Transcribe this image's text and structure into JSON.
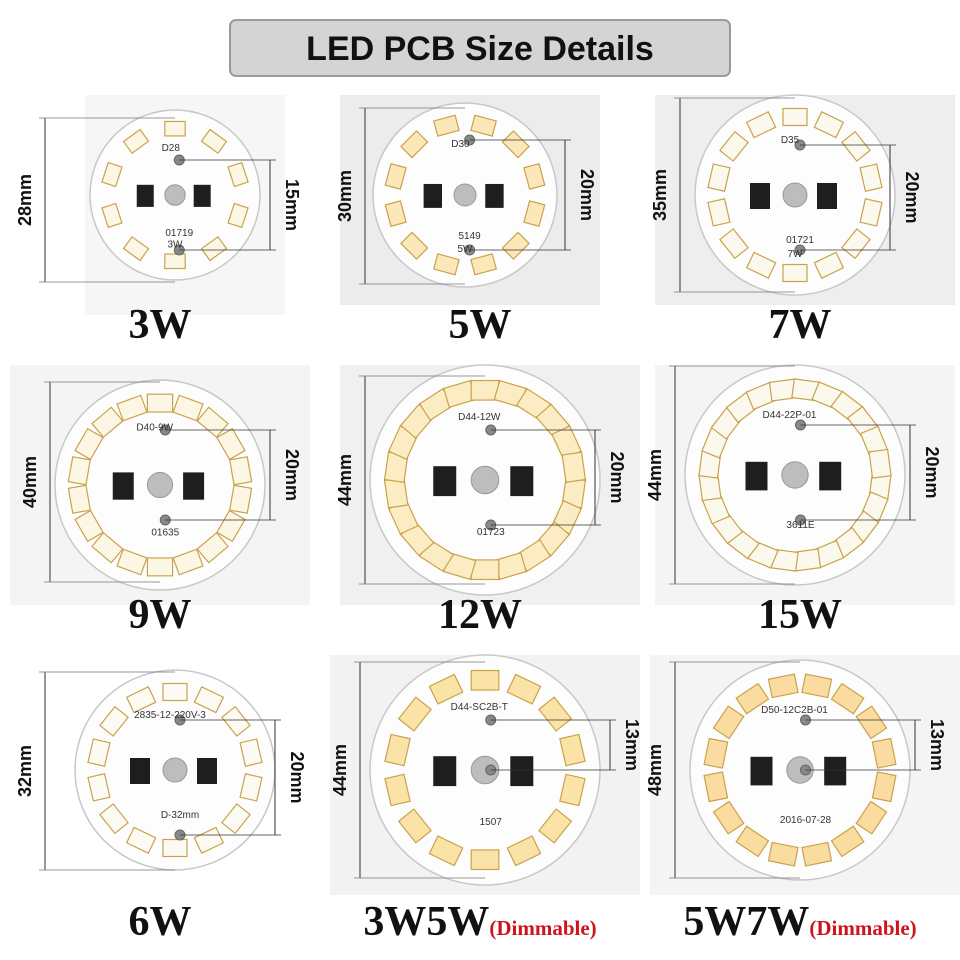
{
  "header": {
    "title": "LED PCB Size Details"
  },
  "panels": [
    {
      "caption": "3W",
      "diameter": "28mm",
      "hole_spacing": "15mm",
      "board_labels": [
        "D28",
        "01719",
        "3W"
      ]
    },
    {
      "caption": "5W",
      "diameter": "30mm",
      "hole_spacing": "20mm",
      "board_labels": [
        "D30",
        "5149",
        "5W"
      ]
    },
    {
      "caption": "7W",
      "diameter": "35mm",
      "hole_spacing": "20mm",
      "board_labels": [
        "D35",
        "01721",
        "7W"
      ]
    },
    {
      "caption": "9W",
      "diameter": "40mm",
      "hole_spacing": "20mm",
      "board_labels": [
        "D40-9W",
        "01635"
      ]
    },
    {
      "caption": "12W",
      "diameter": "44mm",
      "hole_spacing": "20mm",
      "board_labels": [
        "D44-12W",
        "01723"
      ]
    },
    {
      "caption": "15W",
      "diameter": "44mm",
      "hole_spacing": "20mm",
      "board_labels": [
        "D44-22P-01",
        "3611E"
      ]
    },
    {
      "caption": "6W",
      "diameter": "32mm",
      "hole_spacing": "20mm",
      "board_labels": [
        "2835-12-220V-3",
        "D-32mm"
      ]
    },
    {
      "caption": "3W5W",
      "note": "(Dimmable)",
      "diameter": "44mm",
      "hole_spacing": "13mm",
      "board_labels": [
        "D44-SC2B-T",
        "1507"
      ]
    },
    {
      "caption": "5W7W",
      "note": "(Dimmable)",
      "diameter": "48mm",
      "hole_spacing": "13mm",
      "board_labels": [
        "D50-12C2B-01",
        "2016-07-28"
      ]
    }
  ]
}
